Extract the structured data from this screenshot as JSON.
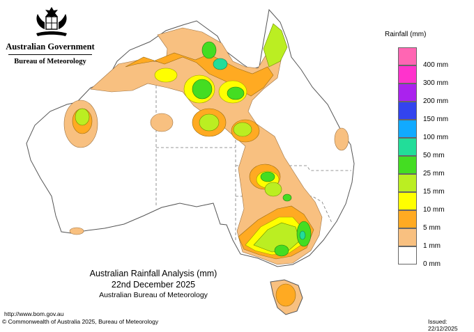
{
  "header": {
    "government": "Australian Government",
    "bureau": "Bureau of Meteorology"
  },
  "map": {
    "title": "Australian Rainfall Analysis (mm)",
    "date": "22nd December 2025",
    "agency": "Australian Bureau of Meteorology"
  },
  "legend": {
    "title": "Rainfall (mm)",
    "items": [
      {
        "label": "400 mm",
        "color": "#ff66b3"
      },
      {
        "label": "300 mm",
        "color": "#ff33cc"
      },
      {
        "label": "200 mm",
        "color": "#aa22ee"
      },
      {
        "label": "150 mm",
        "color": "#3344ee"
      },
      {
        "label": "100 mm",
        "color": "#11aaff"
      },
      {
        "label": "50 mm",
        "color": "#22dd99"
      },
      {
        "label": "25 mm",
        "color": "#44dd22"
      },
      {
        "label": "15 mm",
        "color": "#bbee22"
      },
      {
        "label": "10 mm",
        "color": "#ffff00"
      },
      {
        "label": "5 mm",
        "color": "#ffaa22"
      },
      {
        "label": "1 mm",
        "color": "#f8c080"
      },
      {
        "label": "0 mm",
        "color": "#ffffff"
      }
    ]
  },
  "footer": {
    "url": "http://www.bom.gov.au",
    "copyright": "© Commonwealth of Australia 2025, Bureau of Meteorology",
    "issued": "Issued: 22/12/2025"
  },
  "icons": [
    "coat-of-arms-icon"
  ]
}
